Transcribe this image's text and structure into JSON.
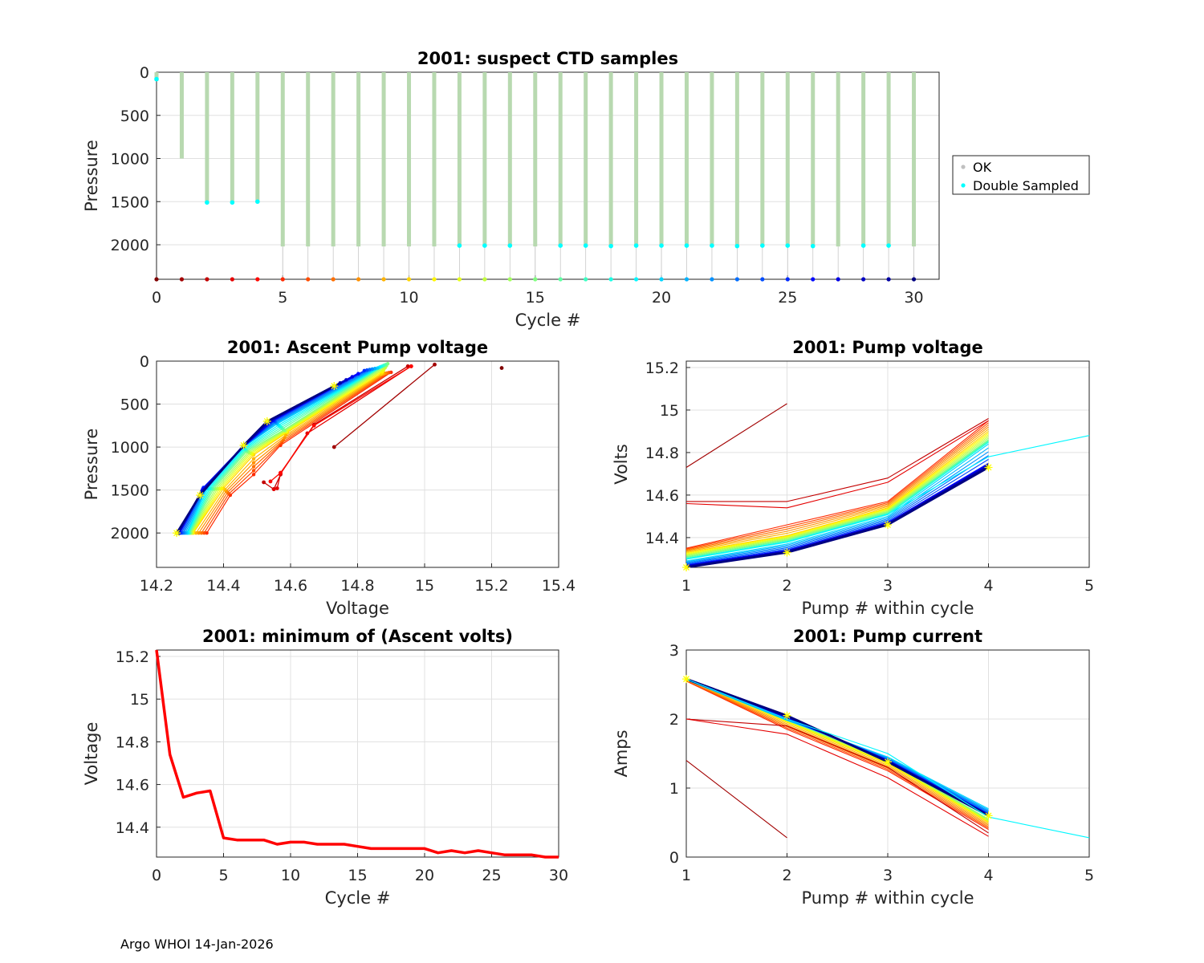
{
  "footer": "Argo WHOI 14-Jan-2026",
  "colors": {
    "ok": "#b8d9b0",
    "double": "#00ffff",
    "grid": "#e0e0e0",
    "axis": "#262626",
    "min_line": "#ff0000",
    "marker_yellow": "#ffff00"
  },
  "chart_data": [
    {
      "id": "ctd",
      "type": "scatter",
      "title": "2001: suspect CTD samples",
      "xlabel": "Cycle #",
      "ylabel": "Pressure",
      "xlim": [
        0,
        31
      ],
      "ylim": [
        2400,
        0
      ],
      "xticks": [
        0,
        5,
        10,
        15,
        20,
        25,
        30
      ],
      "yticks": [
        0,
        500,
        1000,
        1500,
        2000
      ],
      "grid": true,
      "legend": {
        "placement": "outside-right",
        "entries": [
          "OK",
          "Double Sampled"
        ]
      },
      "profile_max_pressure": [
        100,
        1000,
        1510,
        1510,
        1500,
        2020,
        2020,
        2020,
        2020,
        2020,
        2020,
        2020,
        2020,
        2020,
        2020,
        2020,
        2020,
        2020,
        2020,
        2020,
        2020,
        2020,
        2020,
        2020,
        2020,
        2020,
        2020,
        2020,
        2020,
        2020,
        2020
      ],
      "double_sampled": [
        {
          "x": 0,
          "y": 80
        },
        {
          "x": 2,
          "y": 1510
        },
        {
          "x": 3,
          "y": 1510
        },
        {
          "x": 4,
          "y": 1500
        },
        {
          "x": 12,
          "y": 2010
        },
        {
          "x": 13,
          "y": 2010
        },
        {
          "x": 14,
          "y": 2010
        },
        {
          "x": 16,
          "y": 2010
        },
        {
          "x": 17,
          "y": 2010
        },
        {
          "x": 18,
          "y": 2015
        },
        {
          "x": 19,
          "y": 2010
        },
        {
          "x": 20,
          "y": 2010
        },
        {
          "x": 21,
          "y": 2010
        },
        {
          "x": 22,
          "y": 2010
        },
        {
          "x": 23,
          "y": 2015
        },
        {
          "x": 24,
          "y": 2010
        },
        {
          "x": 25,
          "y": 2010
        },
        {
          "x": 26,
          "y": 2015
        },
        {
          "x": 28,
          "y": 2010
        },
        {
          "x": 29,
          "y": 2010
        }
      ],
      "baseline_pressure": 2400
    },
    {
      "id": "ascent",
      "type": "line",
      "title": "2001: Ascent Pump voltage",
      "xlabel": "Voltage",
      "ylabel": "Pressure",
      "xlim": [
        14.2,
        15.4
      ],
      "ylim": [
        2400,
        0
      ],
      "xticks": [
        "14.2",
        "14.4",
        "14.6",
        "14.8",
        "15",
        "15.2",
        "15.4"
      ],
      "yticks": [
        0,
        500,
        1000,
        1500,
        2000
      ],
      "grid": true,
      "series": [
        {
          "cycle": 0,
          "v": [
            15.23
          ],
          "p": [
            80
          ]
        },
        {
          "cycle": 1,
          "v": [
            14.73,
            15.03
          ],
          "p": [
            1000,
            40
          ]
        },
        {
          "cycle": 2,
          "v": [
            14.52,
            14.55,
            14.57,
            14.57,
            14.67,
            14.95
          ],
          "p": [
            1410,
            1490,
            1320,
            1310,
            740,
            60
          ]
        },
        {
          "cycle": 3,
          "v": [
            14.55,
            14.56,
            14.57,
            14.65,
            14.96
          ],
          "p": [
            1490,
            1480,
            1310,
            840,
            60
          ]
        },
        {
          "cycle": 4,
          "v": [
            14.54,
            14.57,
            14.57,
            14.67,
            14.96
          ],
          "p": [
            1400,
            1300,
            1300,
            750,
            60
          ]
        },
        {
          "cycle": 5,
          "v": [
            14.35,
            14.42,
            14.49,
            14.57,
            14.9
          ],
          "p": [
            2000,
            1560,
            1320,
            980,
            130
          ]
        },
        {
          "cycle": 10,
          "v": [
            14.31,
            14.4,
            14.49,
            14.59,
            14.87
          ],
          "p": [
            2000,
            1480,
            1090,
            830,
            150
          ]
        },
        {
          "cycle": 15,
          "v": [
            14.3,
            14.37,
            14.47,
            14.58,
            14.89
          ],
          "p": [
            2000,
            1490,
            1050,
            800,
            30
          ]
        },
        {
          "cycle": 20,
          "v": [
            14.29,
            14.35,
            14.46,
            14.56,
            14.86
          ],
          "p": [
            2000,
            1480,
            1000,
            730,
            80
          ]
        },
        {
          "cycle": 25,
          "v": [
            14.27,
            14.34,
            14.46,
            14.55,
            14.82
          ],
          "p": [
            2000,
            1470,
            990,
            690,
            110
          ]
        },
        {
          "cycle": 30,
          "v": [
            14.26,
            14.33,
            14.46,
            14.53,
            14.73
          ],
          "p": [
            2000,
            1560,
            980,
            700,
            290
          ]
        }
      ]
    },
    {
      "id": "pumpv",
      "type": "line",
      "title": "2001: Pump voltage",
      "xlabel": "Pump # within cycle",
      "ylabel": "Volts",
      "xlim": [
        1,
        5
      ],
      "ylim": [
        14.26,
        15.23
      ],
      "xticks": [
        "1",
        "2",
        "3",
        "4",
        "5"
      ],
      "yticks": [
        "14.4",
        "14.6",
        "14.8",
        "15",
        "15.2"
      ],
      "grid": true,
      "series": [
        {
          "cycle": 1,
          "x": [
            1,
            2
          ],
          "y": [
            14.73,
            15.03
          ]
        },
        {
          "cycle": 2,
          "x": [
            1,
            2,
            3,
            4
          ],
          "y": [
            14.57,
            14.57,
            14.68,
            14.96
          ]
        },
        {
          "cycle": 3,
          "x": [
            1,
            2,
            3,
            4
          ],
          "y": [
            14.56,
            14.54,
            14.66,
            14.95
          ]
        },
        {
          "cycle": 5,
          "x": [
            1,
            2,
            3,
            4
          ],
          "y": [
            14.35,
            14.46,
            14.57,
            14.95
          ]
        },
        {
          "cycle": 10,
          "x": [
            1,
            2,
            3,
            4
          ],
          "y": [
            14.33,
            14.41,
            14.54,
            14.9
          ]
        },
        {
          "cycle": 15,
          "x": [
            1,
            2,
            3,
            4
          ],
          "y": [
            14.31,
            14.39,
            14.52,
            14.86
          ]
        },
        {
          "cycle": 19,
          "x": [
            1,
            2,
            3,
            4,
            5
          ],
          "y": [
            14.3,
            14.38,
            14.51,
            14.78,
            14.88
          ]
        },
        {
          "cycle": 20,
          "x": [
            1,
            2,
            3,
            4
          ],
          "y": [
            14.29,
            14.37,
            14.5,
            14.84
          ]
        },
        {
          "cycle": 25,
          "x": [
            1,
            2,
            3,
            4
          ],
          "y": [
            14.27,
            14.34,
            14.47,
            14.75
          ]
        },
        {
          "cycle": 30,
          "x": [
            1,
            2,
            3,
            4
          ],
          "y": [
            14.26,
            14.33,
            14.46,
            14.73
          ]
        }
      ]
    },
    {
      "id": "minv",
      "type": "line",
      "title": "2001: minimum of (Ascent volts)",
      "xlabel": "Cycle #",
      "ylabel": "Voltage",
      "xlim": [
        0,
        30
      ],
      "ylim": [
        14.26,
        15.23
      ],
      "xticks": [
        0,
        5,
        10,
        15,
        20,
        25,
        30
      ],
      "yticks": [
        "14.4",
        "14.6",
        "14.8",
        "15",
        "15.2"
      ],
      "grid": true,
      "x": [
        0,
        1,
        2,
        3,
        4,
        5,
        6,
        7,
        8,
        9,
        10,
        11,
        12,
        13,
        14,
        15,
        16,
        17,
        18,
        19,
        20,
        21,
        22,
        23,
        24,
        25,
        26,
        27,
        28,
        29,
        30
      ],
      "y": [
        15.23,
        14.74,
        14.54,
        14.56,
        14.57,
        14.35,
        14.34,
        14.34,
        14.34,
        14.32,
        14.33,
        14.33,
        14.32,
        14.32,
        14.32,
        14.31,
        14.3,
        14.3,
        14.3,
        14.3,
        14.3,
        14.28,
        14.29,
        14.28,
        14.29,
        14.28,
        14.27,
        14.27,
        14.27,
        14.26,
        14.26
      ]
    },
    {
      "id": "pumpc",
      "type": "line",
      "title": "2001: Pump current",
      "xlabel": "Pump # within cycle",
      "ylabel": "Amps",
      "xlim": [
        1,
        5
      ],
      "ylim": [
        0,
        3
      ],
      "xticks": [
        "1",
        "2",
        "3",
        "4",
        "5"
      ],
      "yticks": [
        "0",
        "1",
        "2",
        "3"
      ],
      "grid": true,
      "series": [
        {
          "cycle": 1,
          "x": [
            1,
            2
          ],
          "y": [
            1.4,
            0.28
          ]
        },
        {
          "cycle": 2,
          "x": [
            1,
            2,
            3,
            4
          ],
          "y": [
            2.0,
            1.9,
            1.3,
            0.35
          ]
        },
        {
          "cycle": 3,
          "x": [
            1,
            2,
            3,
            4
          ],
          "y": [
            2.0,
            1.78,
            1.15,
            0.3
          ]
        },
        {
          "cycle": 5,
          "x": [
            1,
            2,
            3,
            4
          ],
          "y": [
            2.55,
            1.85,
            1.25,
            0.4
          ]
        },
        {
          "cycle": 10,
          "x": [
            1,
            2,
            3,
            4
          ],
          "y": [
            2.58,
            1.95,
            1.35,
            0.5
          ]
        },
        {
          "cycle": 15,
          "x": [
            1,
            2,
            3,
            4
          ],
          "y": [
            2.58,
            2.0,
            1.4,
            0.55
          ]
        },
        {
          "cycle": 19,
          "x": [
            1,
            2,
            3,
            4,
            5
          ],
          "y": [
            2.58,
            2.0,
            1.5,
            0.58,
            0.28
          ]
        },
        {
          "cycle": 20,
          "x": [
            1,
            2,
            3,
            4
          ],
          "y": [
            2.57,
            1.98,
            1.45,
            0.7
          ]
        },
        {
          "cycle": 25,
          "x": [
            1,
            2,
            3,
            4
          ],
          "y": [
            2.58,
            2.02,
            1.4,
            0.62
          ]
        },
        {
          "cycle": 30,
          "x": [
            1,
            2,
            3,
            4
          ],
          "y": [
            2.58,
            2.05,
            1.38,
            0.6
          ]
        }
      ]
    }
  ]
}
